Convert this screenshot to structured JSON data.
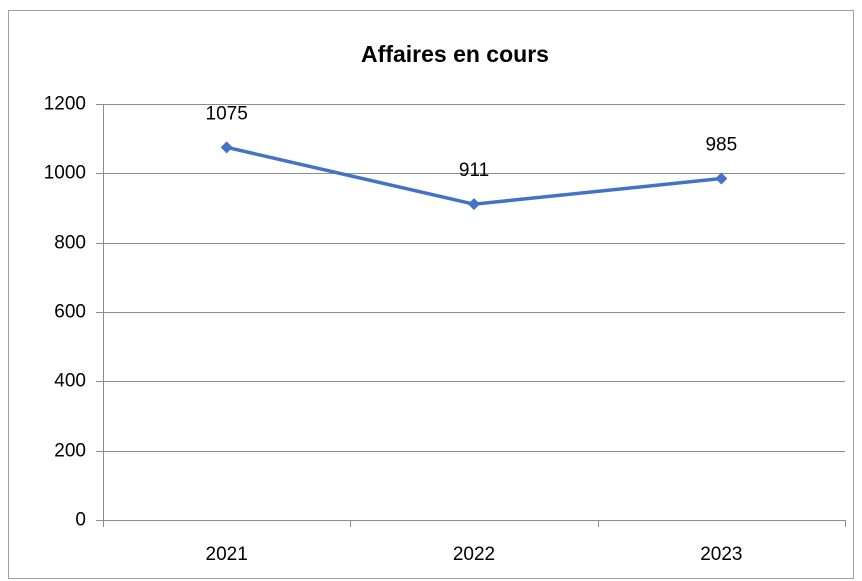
{
  "chart_data": {
    "type": "line",
    "title": "Affaires en cours",
    "categories": [
      "2021",
      "2022",
      "2023"
    ],
    "values": [
      1075,
      911,
      985
    ],
    "color": "#4472c4",
    "ylim": [
      0,
      1200
    ],
    "yticks": [
      0,
      200,
      400,
      600,
      800,
      1000,
      1200
    ],
    "grid": true,
    "data_labels": true
  }
}
